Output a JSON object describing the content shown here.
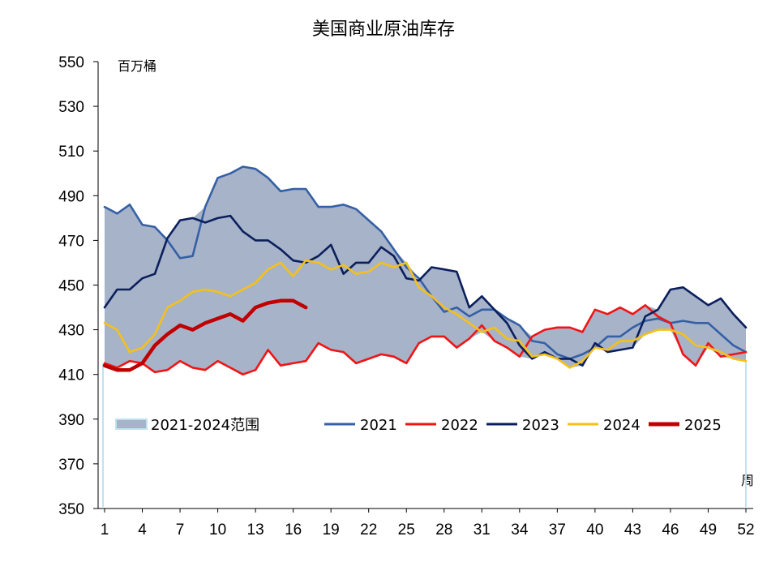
{
  "chart_data": {
    "type": "line",
    "title": "美国商业原油库存",
    "ylabel": "百万桶",
    "xlabel": "周",
    "ylim": [
      350,
      550
    ],
    "xlim": [
      1,
      52
    ],
    "yticks": [
      "550",
      "530",
      "510",
      "490",
      "470",
      "450",
      "430",
      "410",
      "390",
      "370",
      "350"
    ],
    "xticks": [
      "1",
      "4",
      "7",
      "10",
      "13",
      "16",
      "19",
      "22",
      "25",
      "28",
      "31",
      "34",
      "37",
      "40",
      "43",
      "46",
      "49",
      "52"
    ],
    "legend": {
      "placement": "bottom-inside",
      "range_label": "2021-2024范围"
    },
    "colors": {
      "range_fill": "#a7b3c9",
      "range_edge": "#bfe3f0",
      "2021": "#3560a5",
      "2022": "#f01414",
      "2023": "#0b1f5c",
      "2024": "#f5c01a",
      "2025": "#c00000"
    },
    "series": [
      {
        "name": "2021",
        "values": [
          485,
          482,
          486,
          477,
          476,
          470,
          462,
          463,
          485,
          498,
          500,
          503,
          502,
          498,
          492,
          493,
          493,
          485,
          485,
          486,
          484,
          479,
          474,
          466,
          458,
          453,
          445,
          438,
          440,
          436,
          439,
          439,
          435,
          432,
          425,
          424,
          419,
          417,
          419,
          422,
          427,
          427,
          431,
          434,
          435,
          433,
          434,
          433,
          433,
          428,
          423,
          420
        ]
      },
      {
        "name": "2022",
        "values": [
          415,
          413,
          416,
          415,
          411,
          412,
          416,
          413,
          412,
          416,
          413,
          410,
          412,
          421,
          414,
          415,
          416,
          424,
          421,
          420,
          415,
          417,
          419,
          418,
          415,
          424,
          427,
          427,
          422,
          426,
          432,
          425,
          422,
          418,
          427,
          430,
          431,
          431,
          429,
          439,
          437,
          440,
          437,
          441,
          436,
          433,
          419,
          414,
          424,
          418,
          419,
          420
        ]
      },
      {
        "name": "2023",
        "values": [
          440,
          448,
          448,
          453,
          455,
          471,
          479,
          480,
          478,
          480,
          481,
          474,
          470,
          470,
          466,
          461,
          460,
          463,
          468,
          455,
          460,
          460,
          467,
          463,
          453,
          452,
          458,
          457,
          456,
          440,
          445,
          439,
          433,
          423,
          417,
          420,
          417,
          417,
          414,
          424,
          420,
          421,
          422,
          436,
          439,
          448,
          449,
          445,
          441,
          444,
          437,
          431
        ]
      },
      {
        "name": "2024",
        "values": [
          433,
          430,
          420,
          422,
          428,
          440,
          443,
          447,
          448,
          447,
          445,
          448,
          451,
          457,
          460,
          454,
          461,
          460,
          457,
          459,
          455,
          456,
          460,
          458,
          460,
          449,
          445,
          440,
          437,
          433,
          429,
          431,
          426,
          425,
          418,
          419,
          417,
          413,
          416,
          422,
          421,
          425,
          425,
          428,
          430,
          430,
          428,
          423,
          422,
          420,
          417,
          416
        ]
      },
      {
        "name": "2025",
        "values": [
          414,
          412,
          412,
          415,
          423,
          428,
          432,
          430,
          433,
          435,
          437,
          434,
          440,
          442,
          443,
          443,
          440
        ]
      }
    ]
  }
}
